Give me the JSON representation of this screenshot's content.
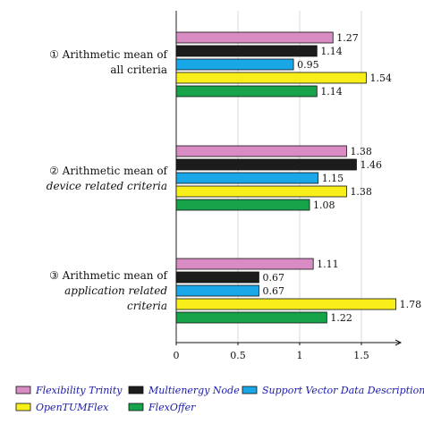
{
  "chart_data": {
    "type": "bar",
    "orientation": "horizontal",
    "xlim": [
      0,
      1.78
    ],
    "xticks": [
      "0",
      "0.5",
      "1",
      "1.5"
    ],
    "xtick_values": [
      0,
      0.5,
      1,
      1.5
    ],
    "grid": "vertical",
    "legend_position": "bottom",
    "series": [
      {
        "name": "Flexibility Trinity",
        "color": "#d98cc4",
        "values": [
          1.27,
          1.38,
          1.11
        ],
        "labels": [
          "1.27",
          "1.38",
          "1.11"
        ]
      },
      {
        "name": "Multienergy Node",
        "color": "#1c1c1c",
        "values": [
          1.14,
          1.46,
          0.67
        ],
        "labels": [
          "1.14",
          "1.46",
          "0.67"
        ]
      },
      {
        "name": "Support Vector Data Description",
        "color": "#1aa7e8",
        "values": [
          0.95,
          1.15,
          0.67
        ],
        "labels": [
          "0.95",
          "1.15",
          "0.67"
        ]
      },
      {
        "name": "OpenTUMFlex",
        "color": "#f7ee1a",
        "values": [
          1.54,
          1.38,
          1.78
        ],
        "labels": [
          "1.54",
          "1.38",
          "1.78"
        ]
      },
      {
        "name": "FlexOffer",
        "color": "#17a34a",
        "values": [
          1.14,
          1.08,
          1.22
        ],
        "labels": [
          "1.14",
          "1.08",
          "1.22"
        ]
      }
    ],
    "categories": [
      {
        "lines": [
          {
            "segments": [
              {
                "text": "① Arithmetic mean of",
                "italic": false
              }
            ]
          },
          {
            "segments": [
              {
                "text": "all criteria",
                "italic": false
              }
            ]
          }
        ]
      },
      {
        "lines": [
          {
            "segments": [
              {
                "text": "② Arithmetic mean of",
                "italic": false
              }
            ]
          },
          {
            "segments": [
              {
                "text": "device related criteria",
                "italic": true
              }
            ]
          }
        ]
      },
      {
        "lines": [
          {
            "segments": [
              {
                "text": "③ Arithmetic mean of",
                "italic": false
              }
            ]
          },
          {
            "segments": [
              {
                "text": "application related",
                "italic": true
              }
            ]
          },
          {
            "segments": [
              {
                "text": "criteria",
                "italic": true
              }
            ]
          }
        ]
      }
    ]
  }
}
